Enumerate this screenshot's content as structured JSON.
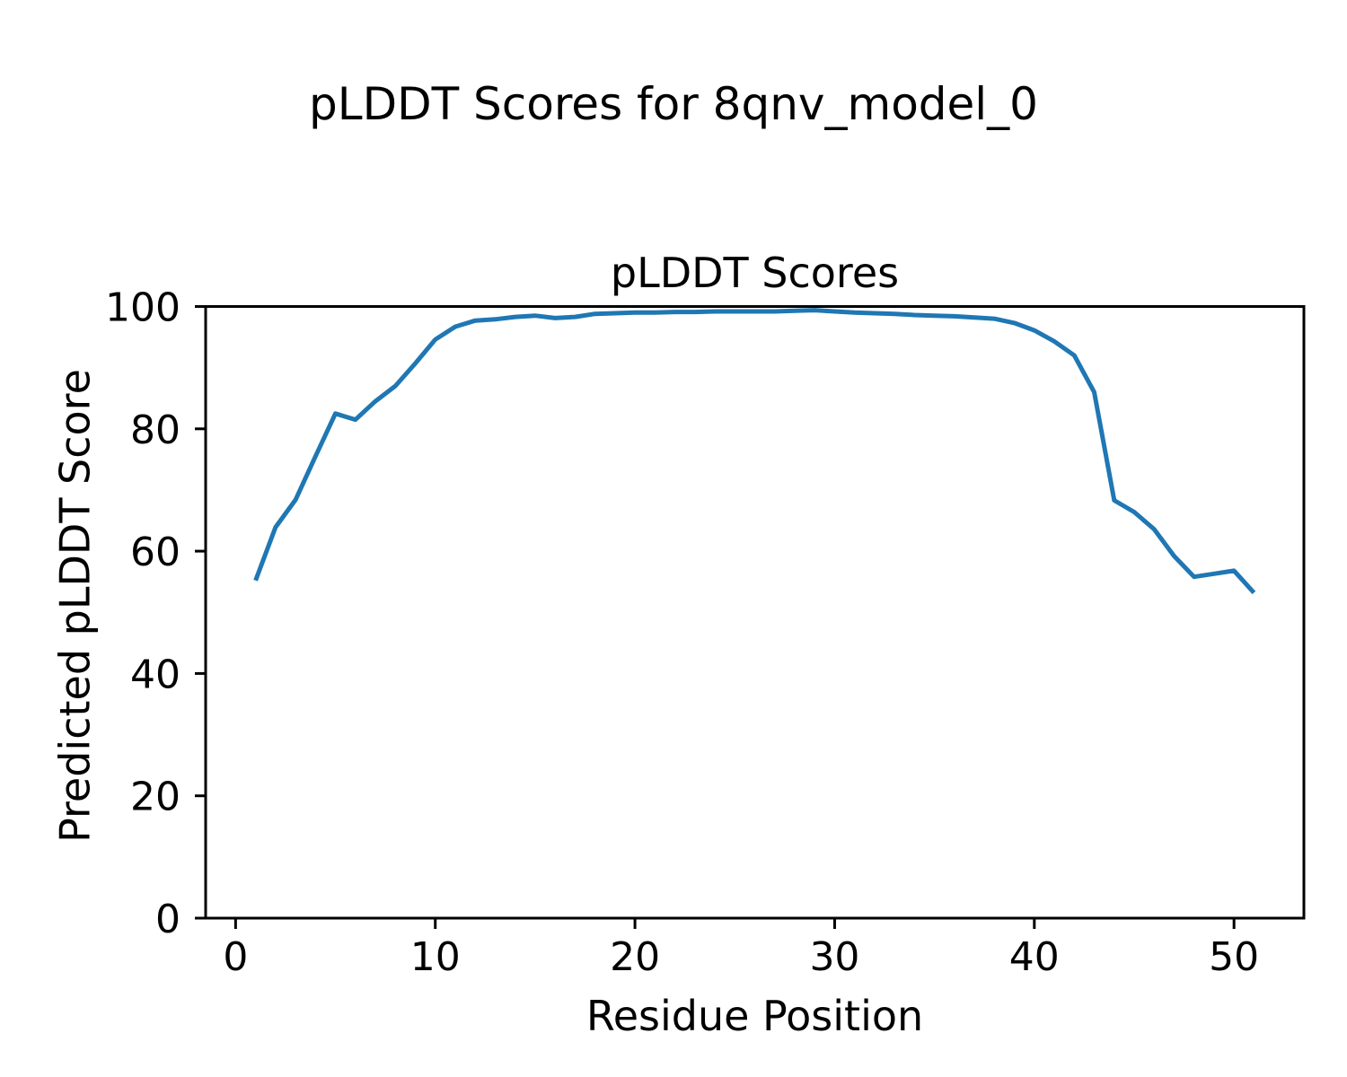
{
  "figure": {
    "suptitle": "pLDDT Scores for 8qnv_model_0"
  },
  "chart_data": {
    "type": "line",
    "title": "pLDDT Scores",
    "xlabel": "Residue Position",
    "ylabel": "Predicted pLDDT Score",
    "legend": "none",
    "grid": false,
    "line_color": "#1f77b4",
    "xlim": [
      -1.5,
      53.5
    ],
    "ylim": [
      0,
      100
    ],
    "xticks": [
      0,
      10,
      20,
      30,
      40,
      50
    ],
    "yticks": [
      0,
      20,
      40,
      60,
      80,
      100
    ],
    "x": [
      1,
      2,
      3,
      4,
      5,
      6,
      7,
      8,
      9,
      10,
      11,
      12,
      13,
      14,
      15,
      16,
      17,
      18,
      19,
      20,
      21,
      22,
      23,
      24,
      25,
      26,
      27,
      28,
      29,
      30,
      31,
      32,
      33,
      34,
      35,
      36,
      37,
      38,
      39,
      40,
      41,
      42,
      43,
      44,
      45,
      46,
      47,
      48,
      49,
      50,
      51
    ],
    "series": [
      {
        "name": "pLDDT",
        "values": [
          55.2,
          63.9,
          68.4,
          75.5,
          82.5,
          81.5,
          84.5,
          87.0,
          90.7,
          94.6,
          96.7,
          97.7,
          97.9,
          98.3,
          98.5,
          98.1,
          98.3,
          98.8,
          98.9,
          99.0,
          99.0,
          99.1,
          99.1,
          99.2,
          99.2,
          99.2,
          99.2,
          99.3,
          99.4,
          99.2,
          99.0,
          98.9,
          98.8,
          98.6,
          98.5,
          98.4,
          98.2,
          98.0,
          97.3,
          96.1,
          94.3,
          92.0,
          86.0,
          68.3,
          66.4,
          63.6,
          59.2,
          55.8,
          56.3,
          56.8,
          53.2
        ]
      }
    ]
  }
}
